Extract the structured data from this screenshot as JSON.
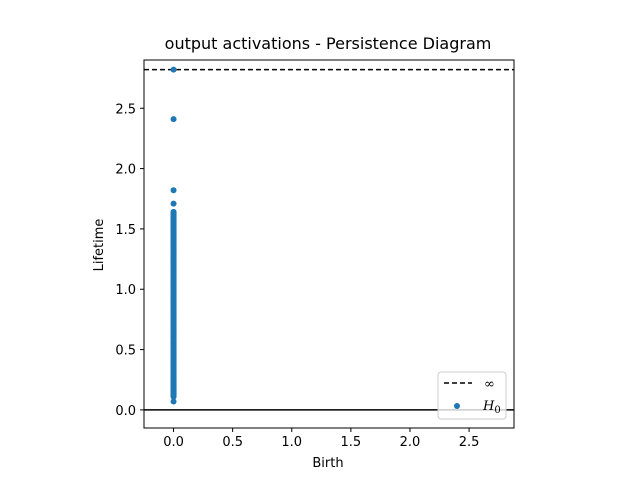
{
  "chart_data": {
    "type": "scatter",
    "title": "output activations - Persistence Diagram",
    "xlabel": "Birth",
    "ylabel": "Lifetime",
    "xlim": [
      -0.25,
      2.88
    ],
    "ylim": [
      -0.15,
      2.9
    ],
    "xticks": [
      "0.0",
      "0.5",
      "1.0",
      "1.5",
      "2.0",
      "2.5"
    ],
    "yticks": [
      "0.0",
      "0.5",
      "1.0",
      "1.5",
      "2.0",
      "2.5"
    ],
    "infinity_line_y": 2.82,
    "zero_line_y": 0.0,
    "grid": false,
    "legend_position": "lower-right",
    "legend": {
      "infinity_label": "∞",
      "h0_label": "H",
      "h0_subscript": "0"
    },
    "colors": {
      "h0": "#1f77b4",
      "lines": "#000000"
    },
    "series": [
      {
        "name": "H0",
        "x": [
          0,
          0,
          0,
          0,
          0,
          0,
          0,
          0,
          0,
          0,
          0,
          0,
          0,
          0,
          0,
          0,
          0,
          0,
          0,
          0,
          0,
          0,
          0,
          0,
          0,
          0,
          0,
          0,
          0,
          0,
          0,
          0,
          0,
          0,
          0,
          0,
          0,
          0,
          0,
          0,
          0,
          0,
          0,
          0,
          0,
          0,
          0,
          0,
          0,
          0,
          0,
          0,
          0,
          0,
          0,
          0,
          0,
          0,
          0,
          0,
          0,
          0,
          0,
          0,
          0,
          0,
          0,
          0
        ],
        "y": [
          0.07,
          0.12,
          0.14,
          0.16,
          0.18,
          0.2,
          0.22,
          0.25,
          0.28,
          0.3,
          0.33,
          0.36,
          0.4,
          0.43,
          0.46,
          0.5,
          0.53,
          0.56,
          0.6,
          0.63,
          0.66,
          0.7,
          0.73,
          0.76,
          0.8,
          0.83,
          0.86,
          0.9,
          0.93,
          0.96,
          1.0,
          1.03,
          1.06,
          1.1,
          1.13,
          1.16,
          1.2,
          1.23,
          1.26,
          1.3,
          1.33,
          1.36,
          1.4,
          1.43,
          1.46,
          1.5,
          1.53,
          1.56,
          1.58,
          1.6,
          1.62,
          1.64,
          1.71,
          1.82,
          2.41,
          2.82,
          0.11,
          0.15,
          0.24,
          0.38,
          0.55,
          0.72,
          0.88,
          1.05,
          1.22,
          1.38,
          1.48,
          1.55
        ]
      }
    ]
  }
}
